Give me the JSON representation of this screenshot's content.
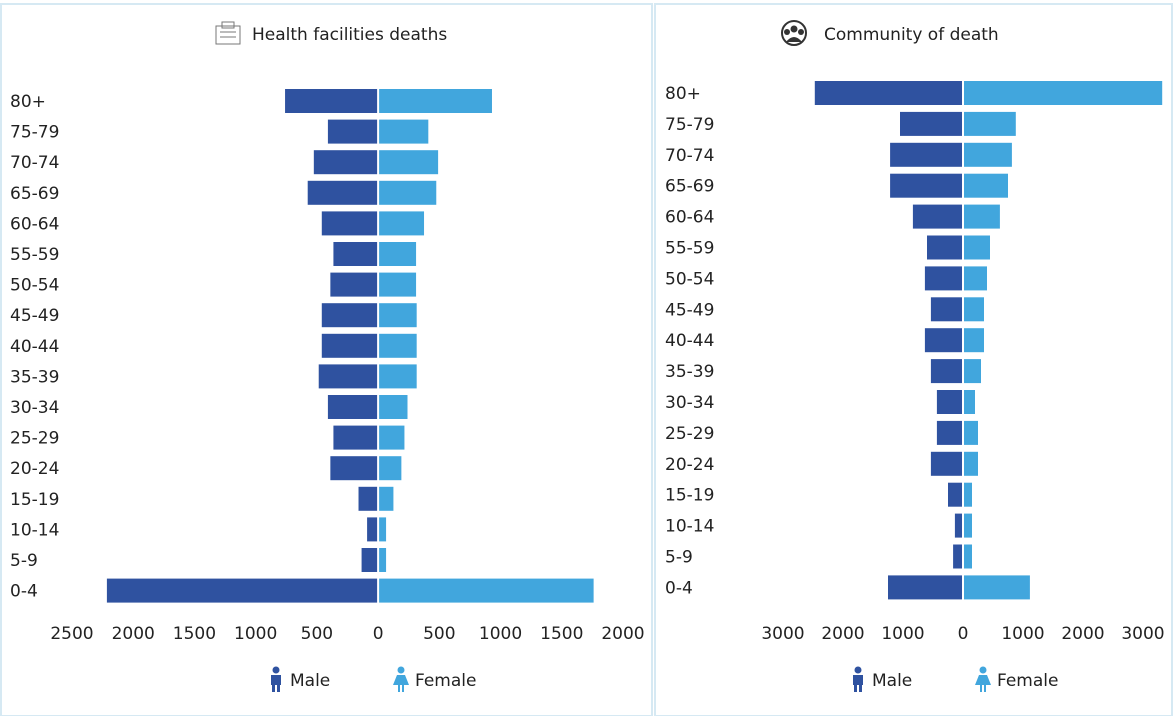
{
  "chart_data": [
    {
      "type": "pyramid",
      "title": "Health facilities deaths",
      "categories": [
        "80+",
        "75-79",
        "70-74",
        "65-69",
        "60-64",
        "55-59",
        "50-54",
        "45-49",
        "40-44",
        "35-39",
        "30-34",
        "25-29",
        "20-24",
        "15-19",
        "10-14",
        "5-9",
        "0-4"
      ],
      "series": [
        {
          "name": "Male",
          "color": "#2f52a0",
          "values": [
            760,
            410,
            525,
            575,
            460,
            365,
            390,
            460,
            460,
            485,
            410,
            365,
            390,
            160,
            90,
            135,
            2215
          ]
        },
        {
          "name": "Female",
          "color": "#41a6dd",
          "values": [
            930,
            410,
            490,
            475,
            375,
            310,
            310,
            315,
            315,
            315,
            240,
            215,
            190,
            125,
            65,
            65,
            1760
          ]
        }
      ],
      "xlim": [
        -2500,
        2000
      ],
      "xticks": [
        {
          "value": -2500,
          "label": "2500"
        },
        {
          "value": -2000,
          "label": "2000"
        },
        {
          "value": -1500,
          "label": "1500"
        },
        {
          "value": -1000,
          "label": "1000"
        },
        {
          "value": -500,
          "label": "500"
        },
        0,
        500,
        1000,
        1500,
        2000
      ]
    },
    {
      "type": "pyramid",
      "title": "Community of death",
      "categories": [
        "80+",
        "75-79",
        "70-74",
        "65-69",
        "60-64",
        "55-59",
        "50-54",
        "45-49",
        "40-44",
        "35-39",
        "30-34",
        "25-29",
        "20-24",
        "15-19",
        "10-14",
        "5-9",
        "0-4"
      ],
      "series": [
        {
          "name": "Male",
          "color": "#2f52a0",
          "values": [
            2470,
            1050,
            1215,
            1215,
            835,
            600,
            635,
            535,
            635,
            535,
            435,
            435,
            535,
            250,
            135,
            165,
            1250
          ]
        },
        {
          "name": "Female",
          "color": "#41a6dd",
          "values": [
            3320,
            880,
            815,
            750,
            615,
            450,
            400,
            350,
            350,
            300,
            200,
            250,
            250,
            150,
            150,
            150,
            1115
          ]
        }
      ],
      "xlim": [
        -3400,
        3400
      ],
      "xticks": [
        {
          "value": -3000,
          "label": "3000"
        },
        {
          "value": -2000,
          "label": "2000"
        },
        {
          "value": -1000,
          "label": "1000"
        },
        0,
        1000,
        2000,
        3000
      ]
    }
  ]
}
